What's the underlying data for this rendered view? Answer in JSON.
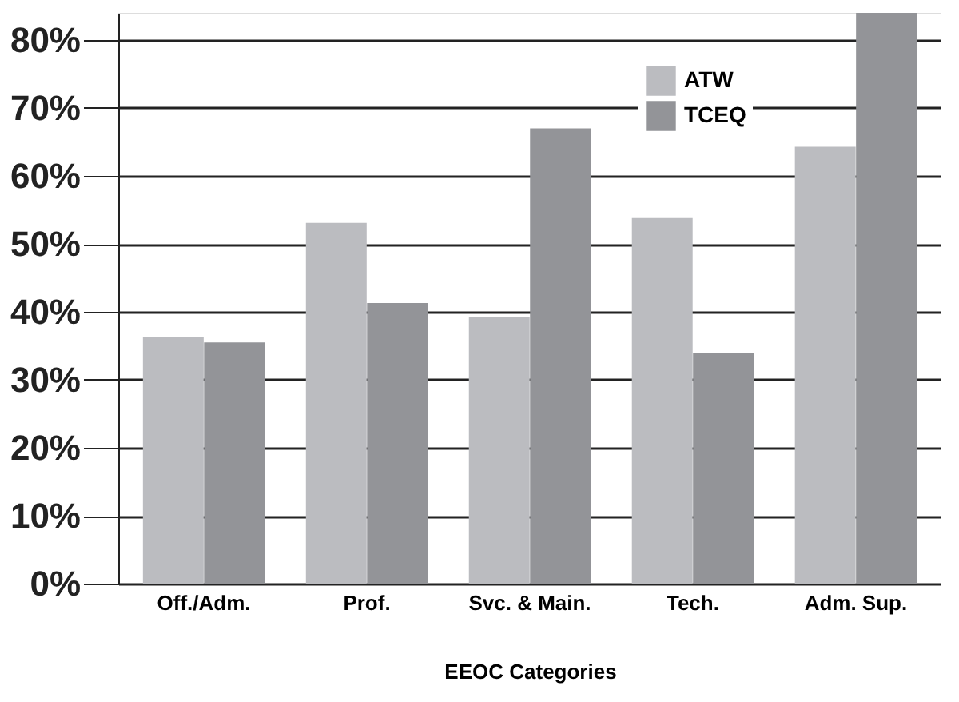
{
  "chart_data": {
    "type": "bar",
    "xlabel": "EEOC Categories",
    "categories": [
      "Off./Adm.",
      "Prof.",
      "Svc. & Main.",
      "Tech.",
      "Adm. Sup."
    ],
    "series": [
      {
        "name": "ATW",
        "color": "#bbbcc0",
        "values": [
          36.3,
          53.1,
          39.2,
          53.8,
          64.3
        ]
      },
      {
        "name": "TCEQ",
        "color": "#939498",
        "values": [
          35.5,
          41.3,
          67.0,
          34.0,
          84.0
        ]
      }
    ],
    "ylim": [
      0,
      84
    ],
    "yticks": [
      {
        "value": 0,
        "label": "0%"
      },
      {
        "value": 10,
        "label": "10%"
      },
      {
        "value": 20,
        "label": "20%"
      },
      {
        "value": 30,
        "label": "30%"
      },
      {
        "value": 40,
        "label": "40%"
      },
      {
        "value": 50,
        "label": "50%"
      },
      {
        "value": 60,
        "label": "60%"
      },
      {
        "value": 70,
        "label": "70%"
      },
      {
        "value": 80,
        "label": "80%"
      }
    ],
    "grid": "y",
    "legend": "top right"
  }
}
